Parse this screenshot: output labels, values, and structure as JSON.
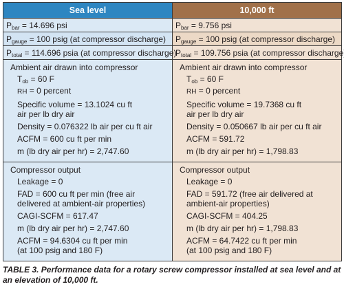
{
  "header": {
    "sea_level": "Sea level",
    "altitude": "10,000 ft"
  },
  "pressure_rows": {
    "sea": [
      {
        "sym": "P",
        "sub": "bar",
        "val": " = 14.696 psi"
      },
      {
        "sym": "P",
        "sub": "gauge",
        "val": " = 100 psig (at compressor discharge)"
      },
      {
        "sym": "P",
        "sub": "total",
        "val": " = 114.696 psia (at compressor discharge)"
      }
    ],
    "alt": [
      {
        "sym": "P",
        "sub": "bar",
        "val": " = 9.756 psi"
      },
      {
        "sym": "P",
        "sub": "gauge",
        "val": " = 100 psig (at compressor discharge)"
      },
      {
        "sym": "P",
        "sub": "total",
        "val": " = 109.756 psia (at compressor discharge)"
      }
    ]
  },
  "ambient": {
    "heading": "Ambient air drawn into compressor",
    "tob_sym": "T",
    "tob_sub": "ob",
    "tob_val": " = 60 F",
    "rh_sym": "RH",
    "rh_val": " = 0 percent",
    "sea": {
      "specific_volume": "Specific volume = 13.1024 cu ft air per lb dry air",
      "density": "Density = 0.076322 lb air per cu ft air",
      "acfm": "ACFM = 600 cu ft per min",
      "mass": "m (lb dry air per hr) = 2,747.60"
    },
    "alt": {
      "specific_volume": "Specific volume = 19.7368 cu ft air per lb dry air",
      "density": "Density = 0.050667 lb air per cu ft air",
      "acfm": "ACFM = 591.72",
      "mass": "m (lb dry air per hr) = 1,798.83"
    }
  },
  "output": {
    "heading": "Compressor output",
    "leakage": "Leakage = 0",
    "sea": {
      "fad": "FAD = 600 cu ft per min (free air delivered at ambient-air properties)",
      "cagi": "CAGI-SCFM = 617.47",
      "mass": "m (lb dry air per hr) = 2,747.60",
      "acfm": "ACFM = 94.6304 cu ft per min (at 100 psig and 180 F)"
    },
    "alt": {
      "fad": "FAD = 591.72 (free air delivered at ambient-air properties)",
      "cagi": "CAGI-SCFM = 404.25",
      "mass": "m (lb dry air per hr) = 1,798.83",
      "acfm": "ACFM = 64.7422 cu ft per min (at 100 psig and 180 F)"
    }
  },
  "caption": "TABLE 3. Performance data for a rotary screw compressor installed at sea level and at an elevation of 10,000 ft.",
  "colors": {
    "sea_header": "#2e86c1",
    "alt_header": "#a1714a",
    "sea_cell": "#dbe9f5",
    "alt_cell": "#f1e2d4"
  }
}
